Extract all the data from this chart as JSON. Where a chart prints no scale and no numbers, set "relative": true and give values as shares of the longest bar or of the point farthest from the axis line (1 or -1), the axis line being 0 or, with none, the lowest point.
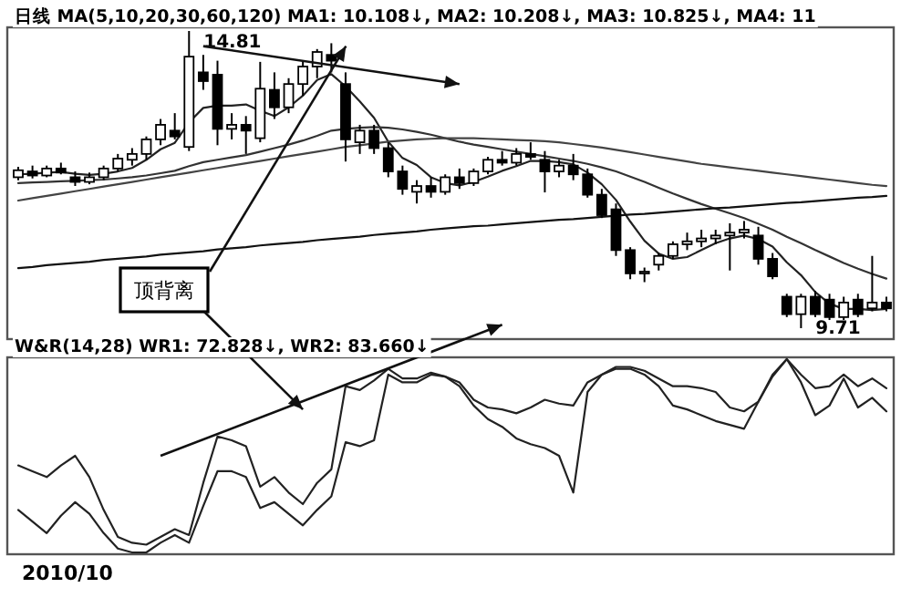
{
  "chart_data": [
    {
      "type": "candlestick",
      "title": "日线 MA(5,10,20,30,60,120) MA1: 10.108↓, MA2: 10.208↓, MA3: 10.825↓, MA4: 11",
      "categories": [
        null,
        null,
        null,
        null,
        null,
        null,
        null,
        null,
        null,
        null,
        null,
        null,
        null,
        null,
        null,
        null,
        null,
        null,
        null,
        null,
        null,
        null,
        null,
        null,
        null,
        null,
        null,
        null,
        null,
        null,
        null,
        null,
        null,
        null,
        null,
        null,
        null,
        null,
        null,
        null,
        null,
        null,
        null,
        null,
        null,
        null,
        null,
        null,
        null,
        null,
        null,
        null,
        null,
        null,
        null,
        null,
        null,
        null,
        null,
        null,
        null,
        null
      ],
      "ohlc": [
        [
          12.3,
          12.48,
          12.25,
          12.42
        ],
        [
          12.4,
          12.5,
          12.28,
          12.33
        ],
        [
          12.33,
          12.5,
          12.3,
          12.45
        ],
        [
          12.45,
          12.55,
          12.35,
          12.38
        ],
        [
          12.3,
          12.4,
          12.15,
          12.22
        ],
        [
          12.22,
          12.38,
          12.18,
          12.3
        ],
        [
          12.3,
          12.5,
          12.25,
          12.45
        ],
        [
          12.45,
          12.7,
          12.4,
          12.62
        ],
        [
          12.6,
          12.8,
          12.5,
          12.7
        ],
        [
          12.7,
          13.0,
          12.6,
          12.95
        ],
        [
          12.95,
          13.3,
          12.85,
          13.2
        ],
        [
          13.1,
          13.4,
          12.95,
          13.0
        ],
        [
          12.82,
          14.81,
          12.75,
          14.37
        ],
        [
          14.1,
          14.4,
          13.8,
          13.95
        ],
        [
          14.06,
          14.3,
          12.85,
          13.13
        ],
        [
          13.13,
          13.4,
          12.95,
          13.2
        ],
        [
          13.2,
          13.35,
          12.7,
          13.1
        ],
        [
          12.97,
          14.28,
          12.9,
          13.82
        ],
        [
          13.8,
          14.1,
          13.3,
          13.5
        ],
        [
          13.5,
          14.0,
          13.4,
          13.9
        ],
        [
          13.9,
          14.3,
          13.7,
          14.2
        ],
        [
          14.2,
          14.5,
          14.0,
          14.45
        ],
        [
          14.4,
          14.6,
          14.1,
          14.3
        ],
        [
          13.9,
          14.1,
          12.57,
          12.95
        ],
        [
          12.9,
          13.2,
          12.7,
          13.1
        ],
        [
          13.1,
          13.2,
          12.7,
          12.8
        ],
        [
          12.8,
          12.9,
          12.3,
          12.4
        ],
        [
          12.4,
          12.5,
          12.0,
          12.1
        ],
        [
          12.05,
          12.25,
          11.85,
          12.15
        ],
        [
          12.15,
          12.3,
          11.95,
          12.05
        ],
        [
          12.05,
          12.35,
          12.0,
          12.3
        ],
        [
          12.3,
          12.45,
          12.1,
          12.2
        ],
        [
          12.2,
          12.45,
          12.15,
          12.4
        ],
        [
          12.4,
          12.65,
          12.35,
          12.6
        ],
        [
          12.6,
          12.75,
          12.5,
          12.55
        ],
        [
          12.55,
          12.8,
          12.5,
          12.7
        ],
        [
          12.7,
          12.9,
          12.6,
          12.65
        ],
        [
          12.6,
          12.75,
          12.04,
          12.4
        ],
        [
          12.4,
          12.6,
          12.3,
          12.5
        ],
        [
          12.5,
          12.7,
          12.25,
          12.35
        ],
        [
          12.35,
          12.45,
          11.95,
          12.0
        ],
        [
          12.0,
          12.1,
          11.6,
          11.65
        ],
        [
          11.75,
          11.85,
          10.95,
          11.05
        ],
        [
          11.05,
          11.1,
          10.55,
          10.65
        ],
        [
          10.65,
          10.75,
          10.5,
          10.68
        ],
        [
          10.8,
          11.0,
          10.7,
          10.95
        ],
        [
          10.95,
          11.2,
          10.9,
          11.15
        ],
        [
          11.15,
          11.35,
          11.05,
          11.2
        ],
        [
          11.2,
          11.4,
          11.1,
          11.25
        ],
        [
          11.25,
          11.4,
          11.15,
          11.3
        ],
        [
          11.3,
          11.51,
          10.7,
          11.35
        ],
        [
          11.35,
          11.55,
          11.25,
          11.4
        ],
        [
          11.3,
          11.45,
          10.8,
          10.9
        ],
        [
          10.9,
          11.0,
          10.55,
          10.6
        ],
        [
          10.25,
          10.3,
          9.9,
          9.95
        ],
        [
          9.95,
          10.3,
          9.71,
          10.25
        ],
        [
          10.25,
          10.35,
          9.9,
          9.95
        ],
        [
          10.2,
          10.3,
          9.85,
          9.9
        ],
        [
          9.9,
          10.25,
          9.85,
          10.15
        ],
        [
          10.2,
          10.3,
          9.9,
          9.95
        ],
        [
          10.05,
          10.95,
          10.0,
          10.15
        ],
        [
          10.15,
          10.25,
          10.0,
          10.05
        ]
      ],
      "series": [
        {
          "type": "line",
          "color": "#222222",
          "values": [
            12.35,
            12.36,
            12.38,
            12.39,
            12.36,
            12.34,
            12.36,
            12.4,
            12.46,
            12.6,
            12.78,
            12.89,
            13.24,
            13.49,
            13.53,
            13.53,
            13.55,
            13.44,
            13.35,
            13.5,
            13.7,
            13.97,
            14.07,
            13.86,
            13.6,
            13.32,
            12.91,
            12.63,
            12.51,
            12.3,
            12.2,
            12.16,
            12.22,
            12.31,
            12.41,
            12.49,
            12.58,
            12.58,
            12.56,
            12.52,
            12.38,
            12.18,
            11.91,
            11.54,
            11.21,
            10.99,
            10.9,
            10.93,
            11.05,
            11.17,
            11.25,
            11.3,
            11.24,
            11.11,
            10.84,
            10.62,
            10.33,
            10.13,
            10.04,
            10.04,
            10.02,
            10.04
          ]
        },
        {
          "type": "line",
          "color": "#333333",
          "values": [
            12.2,
            12.21,
            12.22,
            12.23,
            12.24,
            12.25,
            12.26,
            12.28,
            12.3,
            12.33,
            12.37,
            12.41,
            12.49,
            12.56,
            12.6,
            12.64,
            12.68,
            12.74,
            12.8,
            12.86,
            12.93,
            13.01,
            13.1,
            13.13,
            13.15,
            13.16,
            13.15,
            13.12,
            13.08,
            13.03,
            12.97,
            12.91,
            12.86,
            12.82,
            12.78,
            12.74,
            12.7,
            12.66,
            12.62,
            12.58,
            12.53,
            12.47,
            12.4,
            12.31,
            12.22,
            12.12,
            12.02,
            11.93,
            11.84,
            11.76,
            11.68,
            11.6,
            11.5,
            11.4,
            11.28,
            11.17,
            11.05,
            10.94,
            10.83,
            10.73,
            10.64,
            10.56
          ]
        },
        {
          "type": "line",
          "color": "#444444",
          "values": [
            11.9,
            11.94,
            11.98,
            12.02,
            12.06,
            12.1,
            12.14,
            12.18,
            12.22,
            12.26,
            12.3,
            12.34,
            12.38,
            12.42,
            12.46,
            12.5,
            12.54,
            12.58,
            12.62,
            12.66,
            12.7,
            12.74,
            12.78,
            12.82,
            12.85,
            12.88,
            12.91,
            12.93,
            12.95,
            12.96,
            12.97,
            12.97,
            12.97,
            12.96,
            12.95,
            12.94,
            12.93,
            12.92,
            12.9,
            12.87,
            12.84,
            12.81,
            12.77,
            12.73,
            12.69,
            12.65,
            12.61,
            12.57,
            12.53,
            12.5,
            12.47,
            12.44,
            12.41,
            12.38,
            12.35,
            12.32,
            12.29,
            12.26,
            12.23,
            12.2,
            12.17,
            12.15
          ]
        },
        {
          "type": "line",
          "color": "#111111",
          "values": [
            10.74,
            10.76,
            10.79,
            10.81,
            10.83,
            10.85,
            10.88,
            10.9,
            10.92,
            10.94,
            10.97,
            10.99,
            11.01,
            11.03,
            11.06,
            11.08,
            11.1,
            11.13,
            11.15,
            11.17,
            11.19,
            11.22,
            11.24,
            11.26,
            11.28,
            11.31,
            11.33,
            11.35,
            11.37,
            11.4,
            11.42,
            11.44,
            11.46,
            11.47,
            11.49,
            11.51,
            11.53,
            11.55,
            11.57,
            11.58,
            11.6,
            11.62,
            11.64,
            11.66,
            11.67,
            11.69,
            11.71,
            11.73,
            11.75,
            11.77,
            11.78,
            11.8,
            11.82,
            11.84,
            11.86,
            11.87,
            11.89,
            11.91,
            11.93,
            11.95,
            11.96,
            11.98
          ]
        }
      ],
      "annotations": [
        "14.81",
        "9.71",
        "顶背离"
      ]
    },
    {
      "type": "line",
      "title": "W&R(14,28) WR1: 72.828↓, WR2: 83.660↓",
      "relative": true,
      "annotations": [
        "2010/10"
      ],
      "categories": [
        null,
        null,
        null,
        null,
        null,
        null,
        null,
        null,
        null,
        null,
        null,
        null,
        null,
        null,
        null,
        null,
        null,
        null,
        null,
        null,
        null,
        null,
        null,
        null,
        null,
        null,
        null,
        null,
        null,
        null,
        null,
        null,
        null,
        null,
        null,
        null,
        null,
        null,
        null,
        null,
        null,
        null,
        null,
        null,
        null,
        null,
        null,
        null,
        null,
        null,
        null,
        null,
        null,
        null,
        null,
        null,
        null,
        null,
        null,
        null,
        null,
        null
      ],
      "series": [
        {
          "color": "#222222",
          "values": [
            0.45,
            0.42,
            0.39,
            0.45,
            0.5,
            0.39,
            0.22,
            0.08,
            0.05,
            0.04,
            0.08,
            0.12,
            0.09,
            0.36,
            0.6,
            0.58,
            0.55,
            0.34,
            0.39,
            0.31,
            0.25,
            0.36,
            0.43,
            0.86,
            0.84,
            0.89,
            0.95,
            0.9,
            0.9,
            0.93,
            0.91,
            0.88,
            0.79,
            0.75,
            0.74,
            0.72,
            0.75,
            0.79,
            0.77,
            0.76,
            0.88,
            0.92,
            0.96,
            0.96,
            0.94,
            0.9,
            0.86,
            0.86,
            0.85,
            0.83,
            0.75,
            0.73,
            0.78,
            0.92,
            1,
            0.92,
            0.85,
            0.86,
            0.92,
            0.86,
            0.9,
            0.85
          ]
        },
        {
          "color": "#222222",
          "values": [
            0.22,
            0.16,
            0.1,
            0.19,
            0.26,
            0.2,
            0.1,
            0.02,
            0,
            0,
            0.05,
            0.09,
            0.05,
            0.24,
            0.42,
            0.42,
            0.39,
            0.23,
            0.26,
            0.2,
            0.14,
            0.22,
            0.29,
            0.57,
            0.55,
            0.58,
            0.92,
            0.88,
            0.88,
            0.92,
            0.91,
            0.86,
            0.76,
            0.69,
            0.65,
            0.59,
            0.56,
            0.54,
            0.5,
            0.31,
            0.83,
            0.92,
            0.95,
            0.95,
            0.92,
            0.86,
            0.76,
            0.74,
            0.71,
            0.68,
            0.66,
            0.64,
            0.78,
            0.91,
            1,
            0.88,
            0.71,
            0.76,
            0.9,
            0.75,
            0.8,
            0.73
          ]
        }
      ]
    }
  ]
}
